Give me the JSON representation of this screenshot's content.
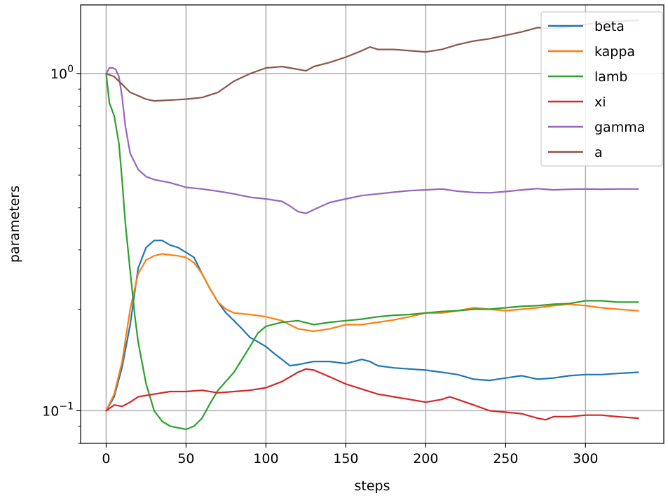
{
  "chart_data": {
    "type": "line",
    "xlabel": "steps",
    "ylabel": "parameters",
    "xlim": [
      -16,
      349
    ],
    "ylim": [
      0.08,
      1.6
    ],
    "yscale": "log",
    "grid": true,
    "legend_position": "top-right",
    "xticks": [
      0,
      50,
      100,
      150,
      200,
      250,
      300
    ],
    "xtick_labels": [
      "0",
      "50",
      "100",
      "150",
      "200",
      "250",
      "300"
    ],
    "yticks": [
      {
        "value": 1.0,
        "base": "10",
        "exp": "0"
      },
      {
        "value": 0.1,
        "base": "10",
        "exp": "−1"
      }
    ],
    "series": [
      {
        "name": "beta",
        "color": "#1f77b4",
        "x": [
          0,
          5,
          10,
          15,
          20,
          25,
          30,
          35,
          40,
          45,
          50,
          55,
          60,
          65,
          70,
          75,
          80,
          85,
          90,
          95,
          100,
          105,
          110,
          115,
          120,
          130,
          140,
          150,
          160,
          165,
          170,
          180,
          190,
          200,
          210,
          220,
          230,
          240,
          250,
          260,
          270,
          280,
          290,
          300,
          310,
          320,
          333
        ],
        "values": [
          0.1,
          0.11,
          0.135,
          0.18,
          0.265,
          0.305,
          0.32,
          0.32,
          0.31,
          0.305,
          0.295,
          0.285,
          0.255,
          0.23,
          0.21,
          0.195,
          0.185,
          0.175,
          0.165,
          0.16,
          0.155,
          0.148,
          0.142,
          0.136,
          0.137,
          0.14,
          0.14,
          0.138,
          0.142,
          0.14,
          0.136,
          0.134,
          0.133,
          0.132,
          0.13,
          0.128,
          0.124,
          0.123,
          0.125,
          0.127,
          0.124,
          0.125,
          0.127,
          0.128,
          0.128,
          0.129,
          0.13
        ]
      },
      {
        "name": "kappa",
        "color": "#ff7f0e",
        "x": [
          0,
          5,
          10,
          15,
          20,
          25,
          30,
          35,
          40,
          45,
          50,
          55,
          60,
          65,
          70,
          75,
          80,
          90,
          100,
          110,
          120,
          130,
          140,
          150,
          160,
          170,
          180,
          190,
          200,
          210,
          220,
          230,
          240,
          250,
          260,
          270,
          280,
          290,
          300,
          310,
          320,
          333
        ],
        "values": [
          0.1,
          0.112,
          0.14,
          0.2,
          0.255,
          0.28,
          0.288,
          0.292,
          0.29,
          0.288,
          0.285,
          0.275,
          0.255,
          0.23,
          0.21,
          0.2,
          0.195,
          0.193,
          0.19,
          0.185,
          0.175,
          0.172,
          0.175,
          0.18,
          0.18,
          0.183,
          0.186,
          0.19,
          0.195,
          0.195,
          0.198,
          0.202,
          0.2,
          0.198,
          0.2,
          0.202,
          0.205,
          0.207,
          0.205,
          0.202,
          0.2,
          0.198
        ]
      },
      {
        "name": "lamb",
        "color": "#2ca02c",
        "x": [
          0,
          2,
          5,
          8,
          10,
          12,
          15,
          18,
          20,
          25,
          30,
          35,
          40,
          45,
          50,
          55,
          60,
          65,
          70,
          80,
          90,
          95,
          100,
          110,
          120,
          130,
          140,
          150,
          160,
          170,
          180,
          190,
          200,
          210,
          220,
          230,
          240,
          250,
          260,
          270,
          280,
          290,
          300,
          310,
          320,
          333
        ],
        "values": [
          1.0,
          0.82,
          0.75,
          0.62,
          0.48,
          0.36,
          0.26,
          0.19,
          0.16,
          0.12,
          0.1,
          0.093,
          0.09,
          0.089,
          0.088,
          0.09,
          0.095,
          0.105,
          0.115,
          0.13,
          0.155,
          0.17,
          0.178,
          0.183,
          0.185,
          0.18,
          0.183,
          0.185,
          0.187,
          0.19,
          0.192,
          0.193,
          0.195,
          0.197,
          0.198,
          0.2,
          0.2,
          0.202,
          0.204,
          0.205,
          0.207,
          0.208,
          0.212,
          0.212,
          0.21,
          0.21
        ]
      },
      {
        "name": "xi",
        "color": "#d62728",
        "x": [
          0,
          5,
          10,
          15,
          20,
          30,
          40,
          50,
          60,
          70,
          80,
          90,
          100,
          110,
          120,
          125,
          130,
          140,
          150,
          160,
          170,
          180,
          190,
          200,
          210,
          215,
          220,
          230,
          240,
          250,
          260,
          270,
          275,
          280,
          290,
          300,
          310,
          320,
          333
        ],
        "values": [
          0.1,
          0.104,
          0.103,
          0.106,
          0.11,
          0.112,
          0.114,
          0.114,
          0.115,
          0.113,
          0.114,
          0.115,
          0.117,
          0.122,
          0.13,
          0.133,
          0.132,
          0.126,
          0.12,
          0.116,
          0.112,
          0.11,
          0.108,
          0.106,
          0.108,
          0.11,
          0.108,
          0.104,
          0.1,
          0.099,
          0.098,
          0.095,
          0.094,
          0.096,
          0.096,
          0.097,
          0.097,
          0.096,
          0.095
        ]
      },
      {
        "name": "gamma",
        "color": "#9467bd",
        "x": [
          0,
          2,
          4,
          6,
          8,
          10,
          12,
          15,
          20,
          25,
          30,
          40,
          50,
          60,
          70,
          80,
          90,
          100,
          110,
          115,
          120,
          125,
          130,
          140,
          150,
          160,
          170,
          180,
          190,
          200,
          210,
          220,
          230,
          240,
          250,
          260,
          270,
          280,
          290,
          300,
          310,
          320,
          333
        ],
        "values": [
          1.0,
          1.04,
          1.04,
          1.03,
          0.98,
          0.85,
          0.7,
          0.58,
          0.52,
          0.495,
          0.485,
          0.475,
          0.46,
          0.455,
          0.448,
          0.44,
          0.43,
          0.425,
          0.418,
          0.405,
          0.39,
          0.385,
          0.395,
          0.415,
          0.425,
          0.435,
          0.44,
          0.445,
          0.45,
          0.452,
          0.455,
          0.448,
          0.444,
          0.443,
          0.447,
          0.452,
          0.456,
          0.452,
          0.454,
          0.455,
          0.454,
          0.455,
          0.455
        ]
      },
      {
        "name": "a",
        "color": "#8c564b",
        "x": [
          0,
          5,
          10,
          15,
          20,
          25,
          30,
          40,
          50,
          60,
          70,
          80,
          90,
          100,
          110,
          120,
          125,
          130,
          140,
          150,
          160,
          165,
          170,
          180,
          190,
          200,
          210,
          220,
          230,
          240,
          250,
          260,
          270,
          280,
          290,
          300,
          310,
          320,
          333
        ],
        "values": [
          1.0,
          0.98,
          0.93,
          0.88,
          0.86,
          0.84,
          0.83,
          0.835,
          0.84,
          0.85,
          0.88,
          0.95,
          1.0,
          1.04,
          1.05,
          1.03,
          1.02,
          1.05,
          1.08,
          1.12,
          1.17,
          1.2,
          1.18,
          1.18,
          1.17,
          1.16,
          1.18,
          1.22,
          1.25,
          1.27,
          1.3,
          1.33,
          1.37,
          1.36,
          1.38,
          1.4,
          1.42,
          1.43,
          1.44
        ]
      }
    ]
  }
}
